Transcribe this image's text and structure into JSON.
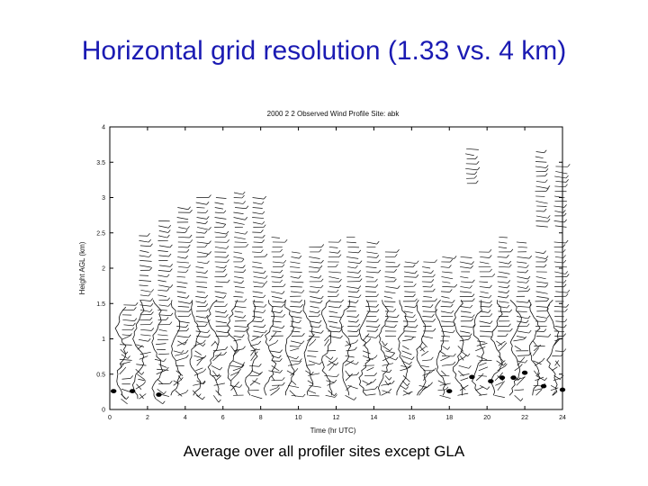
{
  "slide": {
    "title": "Horizontal grid resolution (1.33 vs. 4 km)",
    "caption": "Average over all profiler sites except GLA"
  },
  "chart_data": {
    "type": "scatter",
    "title": "2000 2 2 Observed Wind Profile Site: abk",
    "xlabel": "Time (hr UTC)",
    "ylabel": "Height AGL (km)",
    "xlim": [
      0,
      24
    ],
    "ylim": [
      0,
      4
    ],
    "xticks": [
      "0",
      "2",
      "4",
      "6",
      "8",
      "10",
      "12",
      "14",
      "16",
      "18",
      "20",
      "22",
      "24"
    ],
    "yticks": [
      "0",
      "0.5",
      "1",
      "1.5",
      "2",
      "2.5",
      "3",
      "3.5",
      "4"
    ],
    "grid": false,
    "series": [
      {
        "description_kind": "wind-barb columns",
        "profiles": [
          {
            "x": 0.6,
            "top": 1.5,
            "base": 0.15
          },
          {
            "x": 1.5,
            "top": 2.5,
            "base": 0.15
          },
          {
            "x": 2.5,
            "top": 2.7,
            "base": 0.15
          },
          {
            "x": 3.5,
            "top": 2.9,
            "base": 0.2
          },
          {
            "x": 4.5,
            "top": 3.0,
            "base": 0.2
          },
          {
            "x": 5.5,
            "top": 3.05,
            "base": 0.2
          },
          {
            "x": 6.5,
            "top": 3.1,
            "base": 0.2
          },
          {
            "x": 7.5,
            "top": 3.0,
            "base": 0.2
          },
          {
            "x": 8.5,
            "top": 2.5,
            "base": 0.2
          },
          {
            "x": 9.5,
            "top": 2.3,
            "base": 0.2
          },
          {
            "x": 10.5,
            "top": 2.35,
            "base": 0.2
          },
          {
            "x": 11.5,
            "top": 2.4,
            "base": 0.2
          },
          {
            "x": 12.5,
            "top": 2.45,
            "base": 0.2
          },
          {
            "x": 13.5,
            "top": 2.4,
            "base": 0.2
          },
          {
            "x": 14.5,
            "top": 2.3,
            "base": 0.2
          },
          {
            "x": 15.5,
            "top": 2.1,
            "base": 0.2
          },
          {
            "x": 16.5,
            "top": 2.1,
            "base": 0.2
          },
          {
            "x": 17.5,
            "top": 2.2,
            "base": 0.2
          },
          {
            "x": 18.5,
            "top": 2.2,
            "base": 0.2
          },
          {
            "x": 19.5,
            "top": 2.3,
            "base": 0.2
          },
          {
            "x": 20.5,
            "top": 2.5,
            "base": 0.2
          },
          {
            "x": 21.5,
            "top": 2.4,
            "base": 0.2
          },
          {
            "x": 22.5,
            "top": 2.3,
            "base": 0.2
          },
          {
            "x": 23.5,
            "top": 2.4,
            "base": 0.2
          }
        ],
        "upper_segments": [
          {
            "x": 18.8,
            "top": 3.7,
            "base": 3.2
          },
          {
            "x": 22.5,
            "top": 3.7,
            "base": 2.6
          },
          {
            "x": 23.5,
            "top": 3.5,
            "base": 2.6
          }
        ]
      },
      {
        "description_kind": "surface dots",
        "points": [
          [
            0.2,
            0.26
          ],
          [
            1.2,
            0.26
          ],
          [
            2.6,
            0.21
          ],
          [
            18.0,
            0.26
          ],
          [
            19.2,
            0.46
          ],
          [
            20.2,
            0.4
          ],
          [
            20.8,
            0.45
          ],
          [
            21.4,
            0.45
          ],
          [
            22.0,
            0.52
          ],
          [
            23.0,
            0.33
          ],
          [
            24.0,
            0.28
          ]
        ]
      }
    ]
  }
}
